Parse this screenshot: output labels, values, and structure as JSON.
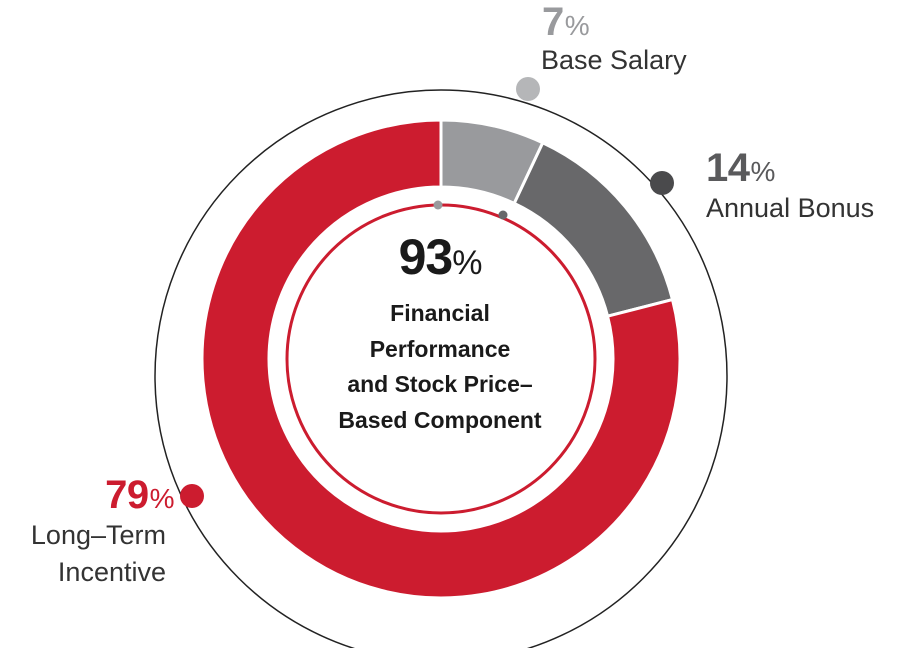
{
  "chart_data": {
    "type": "pie",
    "style": "donut",
    "slices": [
      {
        "label": "Base Salary",
        "value": 7,
        "display": "7",
        "color": "#999a9d"
      },
      {
        "label": "Annual Bonus",
        "value": 14,
        "display": "14",
        "color": "#68686a"
      },
      {
        "label": "Long-Term Incentive",
        "value": 79,
        "display": "79",
        "color": "#cc1c2f"
      }
    ],
    "unit": "%",
    "center": {
      "value": "93",
      "lines": [
        "Financial",
        "Performance",
        "and Stock Price–",
        "Based Component"
      ]
    },
    "labels": {
      "base_salary": "Base Salary",
      "annual_bonus": "Annual Bonus",
      "lti_line1": "Long–Term",
      "lti_line2": "Incentive"
    }
  }
}
